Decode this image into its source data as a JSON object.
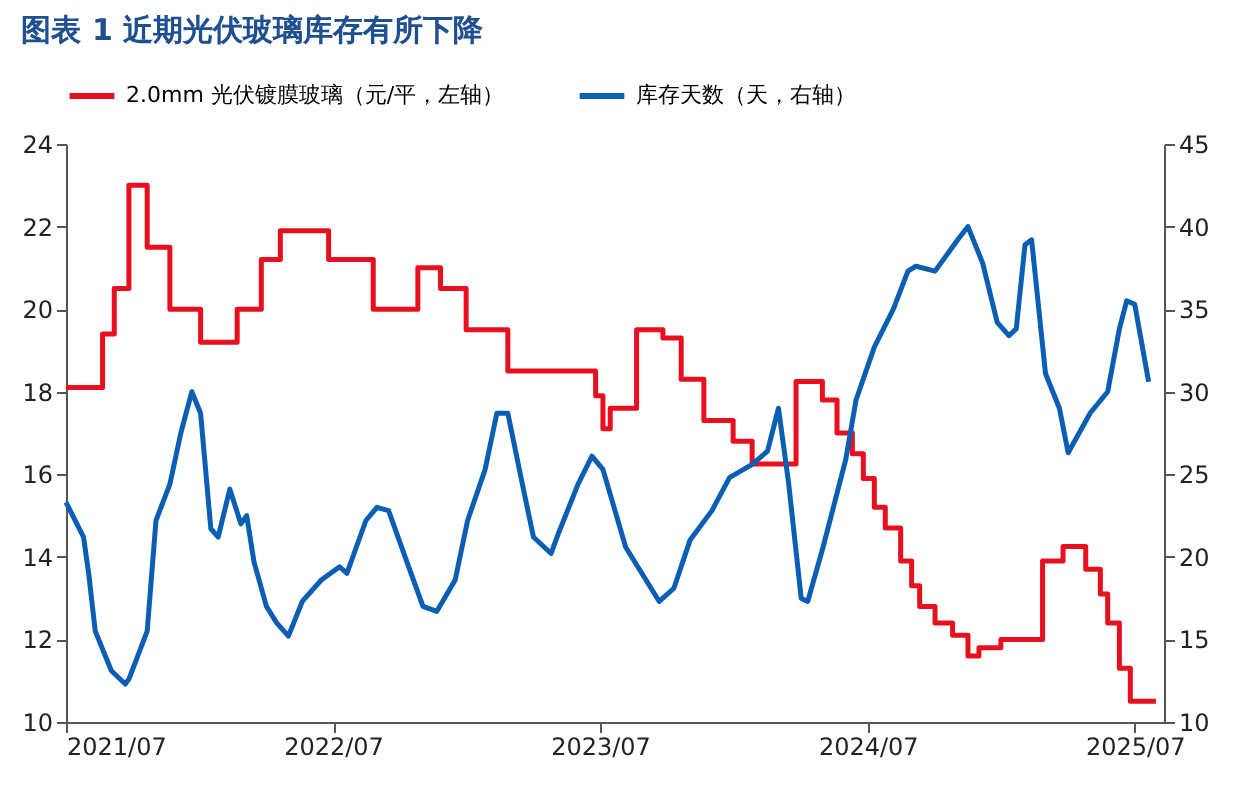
{
  "chart_data": {
    "type": "line",
    "title": "图表 1   近期光伏玻璃库存有所下降",
    "xlim": [
      "2021-07-01",
      "2025-08-10"
    ],
    "xticks": [
      {
        "value": "2021-07-01",
        "label": "2021/07"
      },
      {
        "value": "2022-07-01",
        "label": "2022/07"
      },
      {
        "value": "2023-07-01",
        "label": "2023/07"
      },
      {
        "value": "2024-07-01",
        "label": "2024/07"
      },
      {
        "value": "2025-07-01",
        "label": "2025/07"
      }
    ],
    "ylim": [
      10,
      24
    ],
    "yticks": [
      10,
      12,
      14,
      16,
      18,
      20,
      22,
      24
    ],
    "y2lim": [
      10,
      45
    ],
    "y2ticks": [
      10,
      15,
      20,
      25,
      30,
      35,
      40,
      45
    ],
    "grid": false,
    "legend": "top",
    "line_style": "solid",
    "marker": "none",
    "series": [
      {
        "name": "2.0mm 光伏镀膜玻璃（元/平，左轴）",
        "type": "step",
        "color": "#e8101e",
        "x": [
          "2021-07-01",
          "2021-08-20",
          "2021-09-05",
          "2021-09-25",
          "2021-10-20",
          "2021-11-20",
          "2022-01-01",
          "2022-02-20",
          "2022-03-25",
          "2022-04-20",
          "2022-06-25",
          "2022-08-25",
          "2022-10-25",
          "2022-11-25",
          "2022-12-30",
          "2023-02-25",
          "2023-06-25",
          "2023-07-05",
          "2023-07-15",
          "2023-08-20",
          "2023-09-25",
          "2023-10-20",
          "2023-11-20",
          "2023-12-30",
          "2024-01-25",
          "2024-03-25",
          "2024-04-30",
          "2024-05-20",
          "2024-06-10",
          "2024-06-25",
          "2024-07-10",
          "2024-07-25",
          "2024-08-15",
          "2024-08-30",
          "2024-09-10",
          "2024-10-01",
          "2024-10-25",
          "2024-11-15",
          "2024-11-30",
          "2024-12-30",
          "2025-02-25",
          "2025-03-25",
          "2025-04-25",
          "2025-05-15",
          "2025-05-25",
          "2025-06-10",
          "2025-06-25",
          "2025-07-30"
        ],
        "values": [
          18.1,
          19.4,
          20.5,
          23,
          21.5,
          20,
          19.2,
          20,
          21.2,
          21.9,
          21.2,
          20,
          21,
          20.5,
          19.5,
          18.5,
          17.9,
          17.1,
          17.6,
          19.5,
          19.3,
          18.3,
          17.3,
          16.8,
          16.25,
          18.25,
          17.8,
          17.0,
          16.5,
          15.9,
          15.2,
          14.7,
          13.9,
          13.3,
          12.8,
          12.4,
          12.1,
          11.6,
          11.8,
          12,
          13.9,
          14.25,
          13.7,
          13.1,
          12.4,
          11.3,
          10.5,
          10.5
        ]
      },
      {
        "name": "库存天数（天，右轴）",
        "type": "line",
        "axis": "y2",
        "color": "#0a5fb4",
        "x": [
          "2021-07-01",
          "2021-07-25",
          "2021-08-01",
          "2021-08-10",
          "2021-09-01",
          "2021-09-20",
          "2021-09-25",
          "2021-10-20",
          "2021-11-01",
          "2021-11-20",
          "2021-12-05",
          "2021-12-20",
          "2022-01-01",
          "2022-01-15",
          "2022-01-25",
          "2022-02-10",
          "2022-02-25",
          "2022-03-05",
          "2022-03-15",
          "2022-04-01",
          "2022-04-15",
          "2022-05-01",
          "2022-05-20",
          "2022-06-15",
          "2022-07-10",
          "2022-07-20",
          "2022-08-15",
          "2022-08-30",
          "2022-09-15",
          "2022-10-10",
          "2022-11-01",
          "2022-11-20",
          "2022-12-15",
          "2023-01-01",
          "2023-01-25",
          "2023-02-10",
          "2023-02-25",
          "2023-03-15",
          "2023-04-01",
          "2023-04-25",
          "2023-05-05",
          "2023-06-01",
          "2023-06-20",
          "2023-07-05",
          "2023-08-05",
          "2023-09-20",
          "2023-10-10",
          "2023-11-01",
          "2023-12-01",
          "2023-12-25",
          "2024-01-25",
          "2024-02-15",
          "2024-03-01",
          "2024-03-15",
          "2024-04-01",
          "2024-04-10",
          "2024-05-01",
          "2024-06-01",
          "2024-06-15",
          "2024-07-10",
          "2024-08-05",
          "2024-08-25",
          "2024-09-05",
          "2024-10-01",
          "2024-11-01",
          "2024-11-15",
          "2024-12-05",
          "2024-12-25",
          "2025-01-10",
          "2025-01-20",
          "2025-02-01",
          "2025-02-10",
          "2025-03-01",
          "2025-03-20",
          "2025-04-01",
          "2025-05-01",
          "2025-05-25",
          "2025-06-10",
          "2025-06-20",
          "2025-07-01",
          "2025-07-20"
        ],
        "values": [
          23.3,
          21.2,
          19,
          15.5,
          13.1,
          12.3,
          12.6,
          15.5,
          22.2,
          24.4,
          27.5,
          30,
          28.7,
          21.7,
          21.2,
          24.1,
          22,
          22.5,
          19.7,
          17,
          16,
          15.2,
          17.3,
          18.6,
          19.4,
          19,
          22.2,
          23,
          22.8,
          19.7,
          17,
          16.7,
          18.6,
          22.2,
          25.3,
          28.7,
          28.7,
          24.8,
          21.2,
          20.2,
          21.4,
          24.4,
          26.1,
          25.3,
          20.6,
          17.3,
          18.1,
          21,
          22.8,
          24.8,
          25.6,
          26.4,
          29,
          24.4,
          17.5,
          17.3,
          20.6,
          25.9,
          29.5,
          32.7,
          35,
          37.3,
          37.6,
          37.3,
          39.2,
          40,
          37.8,
          34.2,
          33.4,
          33.8,
          38.9,
          39.2,
          31.1,
          29,
          26.3,
          28.7,
          30,
          33.8,
          35.5,
          35.3,
          30.6
        ]
      }
    ]
  }
}
